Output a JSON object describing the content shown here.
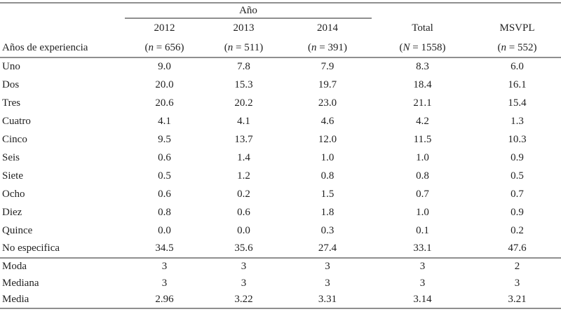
{
  "colors": {
    "background": "#ffffff",
    "text": "#1f1f1f",
    "rule": "#8f8f8f"
  },
  "table": {
    "spanner_label": "Año",
    "row_header_label": "Años de experiencia",
    "columns": [
      {
        "label": "2012",
        "n_prefix": "(",
        "n_var": "n",
        "n_suffix": " = 656)"
      },
      {
        "label": "2013",
        "n_prefix": "(",
        "n_var": "n",
        "n_suffix": " = 511)"
      },
      {
        "label": "2014",
        "n_prefix": "(",
        "n_var": "n",
        "n_suffix": " = 391)"
      },
      {
        "label": "Total",
        "n_prefix": "(",
        "n_var": "N",
        "n_suffix": " = 1558)"
      },
      {
        "label": "MSVPL",
        "n_prefix": "(",
        "n_var": "n",
        "n_suffix": " = 552)"
      }
    ],
    "rows": [
      {
        "label": "Uno",
        "values": [
          "9.0",
          "7.8",
          "7.9",
          "8.3",
          "6.0"
        ]
      },
      {
        "label": "Dos",
        "values": [
          "20.0",
          "15.3",
          "19.7",
          "18.4",
          "16.1"
        ]
      },
      {
        "label": "Tres",
        "values": [
          "20.6",
          "20.2",
          "23.0",
          "21.1",
          "15.4"
        ]
      },
      {
        "label": "Cuatro",
        "values": [
          "4.1",
          "4.1",
          "4.6",
          "4.2",
          "1.3"
        ]
      },
      {
        "label": "Cinco",
        "values": [
          "9.5",
          "13.7",
          "12.0",
          "11.5",
          "10.3"
        ]
      },
      {
        "label": "Seis",
        "values": [
          "0.6",
          "1.4",
          "1.0",
          "1.0",
          "0.9"
        ]
      },
      {
        "label": "Siete",
        "values": [
          "0.5",
          "1.2",
          "0.8",
          "0.8",
          "0.5"
        ]
      },
      {
        "label": "Ocho",
        "values": [
          "0.6",
          "0.2",
          "1.5",
          "0.7",
          "0.7"
        ]
      },
      {
        "label": "Diez",
        "values": [
          "0.8",
          "0.6",
          "1.8",
          "1.0",
          "0.9"
        ]
      },
      {
        "label": "Quince",
        "values": [
          "0.0",
          "0.0",
          "0.3",
          "0.1",
          "0.2"
        ]
      },
      {
        "label": "No especifica",
        "values": [
          "34.5",
          "35.6",
          "27.4",
          "33.1",
          "47.6"
        ]
      }
    ],
    "summary_rows": [
      {
        "label": "Moda",
        "values": [
          "3",
          "3",
          "3",
          "3",
          "2"
        ]
      },
      {
        "label": "Mediana",
        "values": [
          "3",
          "3",
          "3",
          "3",
          "3"
        ]
      },
      {
        "label": "Media",
        "values": [
          "2.96",
          "3.22",
          "3.31",
          "3.14",
          "3.21"
        ]
      }
    ]
  }
}
